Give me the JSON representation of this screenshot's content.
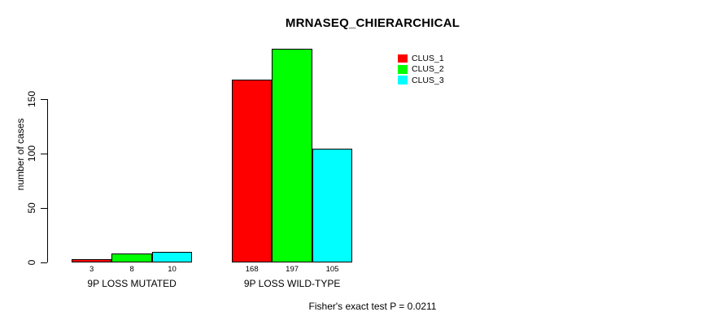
{
  "title": "MRNASEQ_CHIERARCHICAL",
  "footer_note": "Fisher's exact test P = 0.0211",
  "colors": {
    "clus_1": "#FF0000",
    "clus_2": "#00FF00",
    "clus_3": "#00FFFF",
    "axis": "#000000",
    "background": "#FFFFFF"
  },
  "legend": {
    "position": "top-right",
    "items": [
      {
        "label": "CLUS_1",
        "color": "#FF0000"
      },
      {
        "label": "CLUS_2",
        "color": "#00FF00"
      },
      {
        "label": "CLUS_3",
        "color": "#00FFFF"
      }
    ]
  },
  "chart_data": {
    "type": "bar",
    "title": "MRNASEQ_CHIERARCHICAL",
    "xlabel": "",
    "ylabel": "number of cases",
    "categories": [
      "9P LOSS MUTATED",
      "9P LOSS WILD-TYPE"
    ],
    "series": [
      {
        "name": "CLUS_1",
        "color": "#FF0000",
        "values": [
          3,
          168
        ]
      },
      {
        "name": "CLUS_2",
        "color": "#00FF00",
        "values": [
          8,
          197
        ]
      },
      {
        "name": "CLUS_3",
        "color": "#00FFFF",
        "values": [
          10,
          105
        ]
      }
    ],
    "bar_value_labels": [
      [
        "3",
        "8",
        "10"
      ],
      [
        "168",
        "197",
        "105"
      ]
    ],
    "yticks": [
      0,
      50,
      100,
      150
    ],
    "ylim": [
      0,
      150
    ],
    "grid": false,
    "legend_position": "top-right",
    "annotation": "Fisher's exact test P = 0.0211"
  }
}
